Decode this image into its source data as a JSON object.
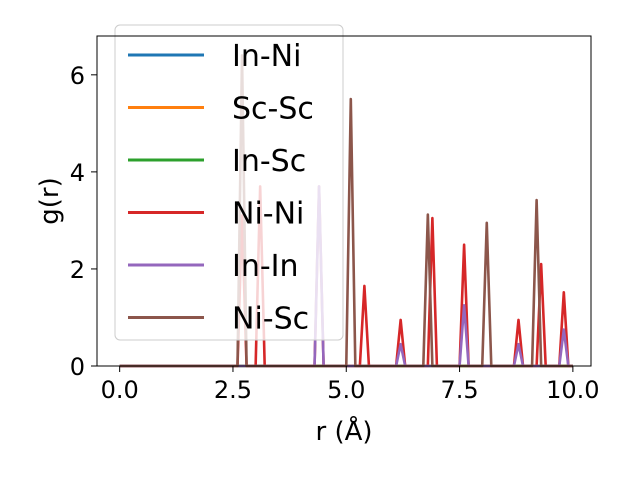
{
  "chart_data": {
    "type": "line",
    "title": "",
    "xlabel": "r (Å)",
    "ylabel": "g(r)",
    "xlim": [
      -0.5,
      10.4
    ],
    "ylim": [
      0,
      6.8
    ],
    "xticks": [
      0.0,
      2.5,
      5.0,
      7.5,
      10.0
    ],
    "xtick_labels": [
      "0.0",
      "2.5",
      "5.0",
      "7.5",
      "10.0"
    ],
    "yticks": [
      0,
      2,
      4,
      6
    ],
    "ytick_labels": [
      "0",
      "2",
      "4",
      "6"
    ],
    "legend_position": "top-left",
    "grid": false,
    "series": [
      {
        "name": "In-Ni",
        "color": "#1f77b4",
        "peaks": []
      },
      {
        "name": "Sc-Sc",
        "color": "#ff7f0e",
        "peaks": []
      },
      {
        "name": "In-Sc",
        "color": "#2ca02c",
        "peaks": []
      },
      {
        "name": "Ni-Ni",
        "color": "#d62728",
        "peaks": [
          [
            2.7,
            3.1
          ],
          [
            3.1,
            3.7
          ],
          [
            4.4,
            3.7
          ],
          [
            5.4,
            1.65
          ],
          [
            6.2,
            0.95
          ],
          [
            6.9,
            3.05
          ],
          [
            7.6,
            2.5
          ],
          [
            8.8,
            0.95
          ],
          [
            9.3,
            2.1
          ],
          [
            9.8,
            1.52
          ]
        ]
      },
      {
        "name": "In-In",
        "color": "#9467bd",
        "peaks": [
          [
            4.4,
            3.7
          ],
          [
            6.2,
            0.45
          ],
          [
            7.6,
            1.25
          ],
          [
            8.8,
            0.45
          ],
          [
            9.8,
            0.75
          ]
        ]
      },
      {
        "name": "Ni-Sc",
        "color": "#8c564b",
        "peaks": [
          [
            2.7,
            6.4
          ],
          [
            5.1,
            5.5
          ],
          [
            6.8,
            3.12
          ],
          [
            8.1,
            2.95
          ],
          [
            9.2,
            3.42
          ]
        ]
      }
    ]
  }
}
